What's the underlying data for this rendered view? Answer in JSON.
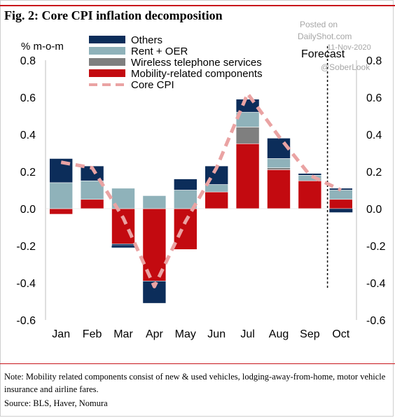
{
  "figure": {
    "title": "Fig. 2:  Core CPI inflation decomposition",
    "note": "Note: Mobility related components consist of new & used vehicles, lodging-away-from-home, motor vehicle insurance and airline fares.",
    "source": "Source: BLS, Haver, Nomura"
  },
  "watermark": {
    "line1": "Posted on",
    "line2": "DailyShot.com",
    "line3": "11-Nov-2020",
    "line4": "@SoberLook"
  },
  "colors": {
    "others": "#0c2d5a",
    "rent_oer": "#8fb2ba",
    "wireless": "#7f7f7f",
    "mobility": "#c30a10",
    "core_cpi": "#eaa3a3"
  },
  "chart_data": {
    "type": "bar",
    "stacked": true,
    "ylabel": "% m-o-m",
    "ylim": [
      -0.6,
      0.8
    ],
    "yticks": [
      "0.8",
      "0.6",
      "0.4",
      "0.2",
      "0.0",
      "-0.2",
      "-0.4",
      "-0.6"
    ],
    "categories": [
      "Jan",
      "Feb",
      "Mar",
      "Apr",
      "May",
      "Jun",
      "Jul",
      "Aug",
      "Sep",
      "Oct"
    ],
    "forecast_label": "Forecast",
    "forecast_start_index": 9,
    "legend_position": "top",
    "series": [
      {
        "name": "Others",
        "color_key": "others",
        "values": [
          0.13,
          0.08,
          -0.01,
          -0.12,
          0.06,
          0.1,
          0.07,
          0.11,
          0.01,
          0.01
        ]
      },
      {
        "name": "Rent + OER",
        "color_key": "rent_oer",
        "values": [
          0.14,
          0.1,
          0.11,
          0.07,
          0.1,
          0.04,
          0.08,
          0.05,
          0.03,
          0.05
        ]
      },
      {
        "name": "Wireless telephone services",
        "color_key": "wireless",
        "values": [
          0.0,
          0.0,
          0.0,
          0.0,
          0.0,
          0.0,
          0.09,
          0.01,
          0.0,
          0.0
        ]
      },
      {
        "name": "Mobility-related components",
        "color_key": "mobility",
        "values": [
          -0.03,
          0.05,
          -0.19,
          -0.39,
          -0.22,
          0.09,
          0.35,
          0.21,
          0.15,
          0.05
        ]
      }
    ],
    "negative_extra": {
      "Others": [
        0.0,
        0.0,
        -0.01,
        0.0,
        0.0,
        0.0,
        0.0,
        0.0,
        0.0,
        -0.02
      ]
    },
    "line": {
      "name": "Core CPI",
      "color_key": "core_cpi",
      "style": "dashed",
      "values": [
        0.25,
        0.22,
        -0.05,
        -0.42,
        -0.07,
        0.22,
        0.62,
        0.39,
        0.18,
        0.1
      ]
    }
  }
}
